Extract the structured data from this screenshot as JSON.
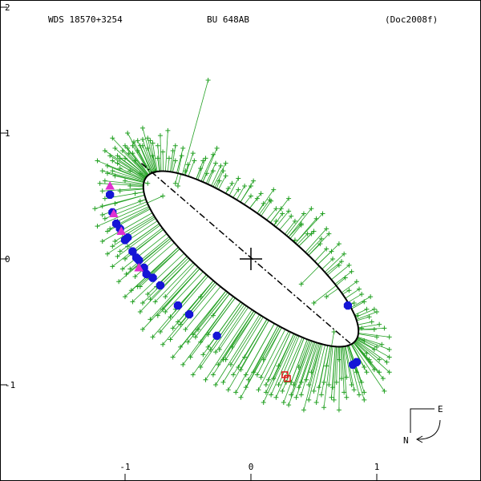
{
  "header": {
    "left": "WDS 18570+3254",
    "center": "BU  648AB",
    "right": "(Doc2008f)"
  },
  "compass": {
    "east": "E",
    "north": "N"
  },
  "colors": {
    "orbit": "#000000",
    "measure": "#22a022",
    "blue": "#1515d6",
    "magenta": "#e030d0",
    "red": "#e01818"
  },
  "chart_data": {
    "type": "scatter",
    "title": "",
    "xlabel": "",
    "ylabel": "",
    "xlim": [
      -2.0,
      1.8
    ],
    "ylim": [
      2.0,
      -1.8
    ],
    "x_ticks": [
      {
        "v": -1,
        "label": "-1"
      },
      {
        "v": 0,
        "label": "0"
      },
      {
        "v": 1,
        "label": "1"
      }
    ],
    "y_ticks": [
      {
        "v": 2,
        "label": "2"
      },
      {
        "v": 1,
        "label": "1"
      },
      {
        "v": 0,
        "label": "0"
      },
      {
        "v": -1,
        "label": "-1"
      }
    ],
    "orbit_ellipse": {
      "cx": 0.0,
      "cy": 0.0,
      "a": 1.055,
      "b": 0.322,
      "angle_deg": 142
    },
    "line_of_nodes": {
      "from": [
        -0.87,
        0.76
      ],
      "to": [
        0.8,
        -0.68
      ]
    },
    "primary": [
      0.0,
      0.0
    ],
    "blue_points": [
      [
        -1.12,
        0.51
      ],
      [
        -1.1,
        0.37
      ],
      [
        -1.07,
        0.28
      ],
      [
        -1.04,
        0.24
      ],
      [
        -1.0,
        0.15
      ],
      [
        -0.98,
        0.17
      ],
      [
        -0.94,
        0.06
      ],
      [
        -0.91,
        0.01
      ],
      [
        -0.89,
        -0.01
      ],
      [
        -0.85,
        -0.07
      ],
      [
        -0.83,
        -0.12
      ],
      [
        -0.78,
        -0.15
      ],
      [
        -0.72,
        -0.21
      ],
      [
        -0.58,
        -0.37
      ],
      [
        -0.49,
        -0.44
      ],
      [
        -0.27,
        -0.61
      ],
      [
        0.77,
        -0.37
      ],
      [
        0.81,
        -0.84
      ],
      [
        0.84,
        -0.82
      ]
    ],
    "magenta_points": [
      [
        -1.12,
        0.58
      ],
      [
        -1.09,
        0.36
      ],
      [
        -1.03,
        0.22
      ],
      [
        -0.89,
        -0.07
      ]
    ],
    "red_points": [
      [
        0.27,
        -0.92
      ],
      [
        0.29,
        -0.95
      ]
    ],
    "green_points": [
      [
        -1.16,
        0.86
      ],
      [
        -1.12,
        0.82
      ],
      [
        -1.08,
        0.88
      ],
      [
        -1.04,
        0.8
      ],
      [
        -1.0,
        0.9
      ],
      [
        -0.97,
        0.84
      ],
      [
        -0.93,
        0.93
      ],
      [
        -0.9,
        0.86
      ],
      [
        -0.86,
        0.95
      ],
      [
        -0.82,
        0.88
      ],
      [
        -0.78,
        0.82
      ],
      [
        -0.74,
        0.9
      ],
      [
        -0.7,
        0.85
      ],
      [
        -0.65,
        0.8
      ],
      [
        -0.6,
        0.78
      ],
      [
        -0.55,
        0.82
      ],
      [
        -0.5,
        0.75
      ],
      [
        -0.45,
        0.78
      ],
      [
        -0.4,
        0.72
      ],
      [
        -0.35,
        0.68
      ],
      [
        -0.3,
        0.7
      ],
      [
        -0.25,
        0.62
      ],
      [
        -0.2,
        0.66
      ],
      [
        -0.15,
        0.6
      ],
      [
        -0.1,
        0.55
      ],
      [
        -0.05,
        0.58
      ],
      [
        0.0,
        0.5
      ],
      [
        0.05,
        0.48
      ],
      [
        0.1,
        0.44
      ],
      [
        0.15,
        0.47
      ],
      [
        0.2,
        0.4
      ],
      [
        0.25,
        0.36
      ],
      [
        0.3,
        0.38
      ],
      [
        0.35,
        0.3
      ],
      [
        0.4,
        0.27
      ],
      [
        0.45,
        0.2
      ],
      [
        0.5,
        0.22
      ],
      [
        0.55,
        0.12
      ],
      [
        0.6,
        0.08
      ],
      [
        0.65,
        0.0
      ],
      [
        0.7,
        -0.05
      ],
      [
        0.75,
        -0.15
      ],
      [
        0.78,
        -0.25
      ],
      [
        0.82,
        -0.35
      ],
      [
        0.85,
        -0.45
      ],
      [
        0.88,
        -0.55
      ],
      [
        0.9,
        -0.65
      ],
      [
        0.92,
        -0.75
      ],
      [
        0.95,
        -0.82
      ],
      [
        0.98,
        -0.88
      ],
      [
        1.02,
        -0.9
      ],
      [
        1.05,
        -0.95
      ],
      [
        0.88,
        -0.98
      ],
      [
        0.8,
        -1.0
      ],
      [
        0.72,
        -0.95
      ],
      [
        0.65,
        -1.02
      ],
      [
        0.58,
        -0.98
      ],
      [
        0.5,
        -1.05
      ],
      [
        0.44,
        -0.96
      ],
      [
        0.38,
        -1.02
      ],
      [
        0.32,
        -0.98
      ],
      [
        0.25,
        -1.05
      ],
      [
        0.18,
        -0.95
      ],
      [
        0.12,
        -1.0
      ],
      [
        0.05,
        -0.92
      ],
      [
        -0.02,
        -0.96
      ],
      [
        -0.08,
        -0.88
      ],
      [
        -0.14,
        -0.92
      ],
      [
        -0.2,
        -0.8
      ],
      [
        -0.26,
        -0.84
      ],
      [
        -0.32,
        -0.72
      ],
      [
        -0.38,
        -0.76
      ],
      [
        -0.44,
        -0.62
      ],
      [
        -0.5,
        -0.66
      ],
      [
        -0.56,
        -0.52
      ],
      [
        -0.62,
        -0.55
      ],
      [
        -0.68,
        -0.42
      ],
      [
        -0.74,
        -0.45
      ],
      [
        -0.8,
        -0.32
      ],
      [
        -0.86,
        -0.35
      ],
      [
        -0.9,
        -0.22
      ],
      [
        -0.95,
        -0.25
      ],
      [
        -0.99,
        -0.12
      ],
      [
        -1.02,
        -0.08
      ],
      [
        -1.06,
        0.02
      ],
      [
        -1.1,
        0.1
      ],
      [
        -1.14,
        0.22
      ],
      [
        -1.18,
        0.35
      ],
      [
        -1.16,
        0.48
      ],
      [
        -1.2,
        0.6
      ],
      [
        -1.18,
        0.7
      ],
      [
        -1.22,
        0.78
      ],
      [
        -1.14,
        0.68
      ],
      [
        -1.08,
        0.66
      ],
      [
        -1.04,
        0.72
      ],
      [
        -0.96,
        0.7
      ],
      [
        -0.92,
        0.78
      ],
      [
        -0.84,
        0.74
      ],
      [
        -0.88,
        0.68
      ],
      [
        -1.1,
        0.96
      ],
      [
        -0.98,
        1.0
      ],
      [
        -0.86,
        1.04
      ],
      [
        -0.72,
        0.98
      ],
      [
        -0.6,
        0.9
      ],
      [
        -0.66,
        1.02
      ],
      [
        -0.36,
        0.8
      ],
      [
        -0.24,
        0.74
      ],
      [
        -0.18,
        0.56
      ],
      [
        0.02,
        0.62
      ],
      [
        0.18,
        0.55
      ],
      [
        0.3,
        0.48
      ],
      [
        0.42,
        0.36
      ],
      [
        0.52,
        0.32
      ],
      [
        0.62,
        0.2
      ],
      [
        0.7,
        0.12
      ],
      [
        0.78,
        -0.05
      ],
      [
        0.84,
        -0.18
      ],
      [
        0.88,
        -0.28
      ],
      [
        0.92,
        -0.4
      ],
      [
        0.96,
        -0.5
      ],
      [
        1.0,
        -0.62
      ],
      [
        0.98,
        -0.72
      ],
      [
        1.02,
        -0.8
      ],
      [
        0.92,
        -0.9
      ],
      [
        0.86,
        -1.08
      ],
      [
        0.76,
        -1.1
      ],
      [
        0.66,
        -1.12
      ],
      [
        0.56,
        -1.08
      ],
      [
        0.46,
        -1.12
      ],
      [
        0.36,
        -1.1
      ],
      [
        0.26,
        -1.14
      ],
      [
        0.16,
        -1.08
      ],
      [
        0.06,
        -1.04
      ],
      [
        -0.04,
        -1.02
      ],
      [
        -0.12,
        -1.06
      ],
      [
        -0.22,
        -0.98
      ],
      [
        -0.3,
        -0.92
      ],
      [
        -0.4,
        -0.86
      ],
      [
        -0.48,
        -0.78
      ],
      [
        -0.56,
        -0.7
      ],
      [
        -0.64,
        -0.64
      ],
      [
        -0.72,
        -0.58
      ],
      [
        -0.8,
        -0.48
      ],
      [
        -0.88,
        -0.42
      ],
      [
        -0.94,
        -0.34
      ],
      [
        -1.0,
        -0.3
      ],
      [
        -1.05,
        -0.18
      ],
      [
        -1.1,
        -0.06
      ],
      [
        -1.14,
        0.04
      ],
      [
        -1.18,
        0.14
      ],
      [
        -1.22,
        0.26
      ],
      [
        -1.24,
        0.4
      ],
      [
        -0.4,
        -0.3
      ],
      [
        -0.3,
        -0.45
      ],
      [
        0.4,
        -0.2
      ],
      [
        0.5,
        -0.35
      ],
      [
        0.35,
        0.15
      ],
      [
        0.2,
        0.3
      ],
      [
        -0.6,
        0.6
      ],
      [
        -0.7,
        0.5
      ],
      [
        -0.82,
        0.6
      ],
      [
        -0.76,
        0.7
      ],
      [
        -0.52,
        0.7
      ],
      [
        -0.58,
        0.58
      ],
      [
        0.6,
        -0.3
      ],
      [
        0.66,
        -0.58
      ],
      [
        0.7,
        -0.8
      ],
      [
        0.6,
        -0.85
      ],
      [
        0.48,
        -0.9
      ],
      [
        0.38,
        -0.86
      ],
      [
        0.22,
        -0.85
      ],
      [
        0.1,
        -0.8
      ],
      [
        -0.05,
        -0.78
      ],
      [
        -0.15,
        -0.7
      ],
      [
        -0.25,
        -0.72
      ],
      [
        -0.34,
        -0.6
      ],
      [
        -0.42,
        -0.56
      ],
      [
        -0.52,
        -0.44
      ],
      [
        -0.6,
        -0.4
      ],
      [
        -0.68,
        -0.3
      ],
      [
        -0.75,
        -0.22
      ],
      [
        -0.82,
        -0.14
      ],
      [
        -0.88,
        -0.06
      ],
      [
        -0.94,
        0.04
      ],
      [
        -0.98,
        0.1
      ],
      [
        -1.02,
        0.2
      ],
      [
        -1.06,
        0.3
      ],
      [
        -1.08,
        0.44
      ],
      [
        -1.04,
        0.54
      ],
      [
        -1.0,
        0.62
      ],
      [
        -0.96,
        0.58
      ],
      [
        -0.92,
        0.52
      ],
      [
        -0.88,
        0.46
      ],
      [
        0.95,
        -0.3
      ],
      [
        1.0,
        -0.42
      ],
      [
        1.06,
        -0.55
      ],
      [
        1.04,
        -0.68
      ],
      [
        1.08,
        -0.82
      ],
      [
        1.1,
        -0.78
      ],
      [
        0.9,
        -1.12
      ],
      [
        0.7,
        -1.2
      ],
      [
        0.58,
        -1.18
      ],
      [
        0.42,
        -1.2
      ],
      [
        0.3,
        -1.16
      ],
      [
        0.1,
        -1.14
      ],
      [
        -0.08,
        -1.1
      ],
      [
        -0.18,
        -1.04
      ],
      [
        -0.28,
        -1.0
      ],
      [
        -0.36,
        -0.96
      ],
      [
        -0.46,
        -0.92
      ],
      [
        -0.54,
        -0.84
      ],
      [
        -0.62,
        -0.78
      ],
      [
        -0.7,
        -0.68
      ],
      [
        -0.78,
        -0.62
      ],
      [
        -0.86,
        -0.56
      ],
      [
        -1.1,
        0.7
      ],
      [
        -1.06,
        0.76
      ],
      [
        -1.0,
        0.8
      ],
      [
        -0.94,
        0.84
      ],
      [
        -0.88,
        0.9
      ],
      [
        -0.8,
        0.94
      ],
      [
        -0.74,
        0.8
      ],
      [
        -0.62,
        0.86
      ],
      [
        -0.54,
        0.88
      ],
      [
        -0.46,
        0.84
      ],
      [
        -0.38,
        0.78
      ],
      [
        -0.28,
        0.76
      ],
      [
        -0.22,
        0.7
      ],
      [
        -0.1,
        0.64
      ],
      [
        0.0,
        0.58
      ],
      [
        0.08,
        0.52
      ],
      [
        0.16,
        0.46
      ],
      [
        0.24,
        0.4
      ],
      [
        0.32,
        0.34
      ],
      [
        0.4,
        0.28
      ],
      [
        0.48,
        0.2
      ],
      [
        0.56,
        0.16
      ],
      [
        0.64,
        0.06
      ],
      [
        0.72,
        -0.02
      ],
      [
        0.8,
        -0.1
      ],
      [
        0.86,
        -0.24
      ],
      [
        0.9,
        -0.34
      ],
      [
        0.94,
        -0.46
      ],
      [
        0.98,
        -0.56
      ],
      [
        1.0,
        -0.7
      ],
      [
        0.94,
        -0.8
      ],
      [
        0.9,
        -0.86
      ],
      [
        0.84,
        -0.9
      ],
      [
        0.76,
        -0.94
      ],
      [
        0.68,
        -0.98
      ],
      [
        0.62,
        -1.0
      ],
      [
        0.54,
        -1.02
      ],
      [
        0.46,
        -1.0
      ],
      [
        0.4,
        -0.98
      ],
      [
        0.34,
        -1.0
      ],
      [
        0.28,
        -0.98
      ],
      [
        0.22,
        -1.0
      ],
      [
        0.14,
        -0.96
      ],
      [
        0.08,
        -0.94
      ],
      [
        0.02,
        -0.9
      ],
      [
        -0.04,
        -0.92
      ],
      [
        -0.1,
        -0.86
      ],
      [
        -0.16,
        -0.84
      ],
      [
        -0.22,
        -0.8
      ],
      [
        -0.28,
        -0.74
      ],
      [
        -0.34,
        -0.7
      ],
      [
        -0.4,
        -0.66
      ],
      [
        -0.46,
        -0.6
      ],
      [
        -0.52,
        -0.56
      ],
      [
        -0.58,
        -0.5
      ],
      [
        -0.64,
        -0.46
      ],
      [
        -0.7,
        -0.4
      ],
      [
        -0.76,
        -0.34
      ],
      [
        -0.82,
        -0.28
      ],
      [
        -0.88,
        -0.22
      ],
      [
        -0.92,
        -0.14
      ],
      [
        -0.96,
        -0.08
      ],
      [
        -1.0,
        0.0
      ],
      [
        -1.04,
        0.06
      ],
      [
        -1.08,
        0.14
      ],
      [
        -1.12,
        0.24
      ],
      [
        -1.16,
        0.32
      ],
      [
        -1.18,
        0.42
      ],
      [
        -1.18,
        0.54
      ],
      [
        -1.16,
        0.62
      ],
      [
        -1.14,
        0.74
      ],
      [
        -1.1,
        0.78
      ],
      [
        -1.06,
        0.82
      ],
      [
        -1.02,
        0.86
      ],
      [
        -0.98,
        0.88
      ],
      [
        -0.94,
        0.9
      ],
      [
        -0.9,
        0.94
      ],
      [
        -0.86,
        0.9
      ],
      [
        -0.82,
        0.96
      ],
      [
        -0.78,
        0.92
      ],
      [
        -0.34,
        1.42
      ],
      [
        -0.27,
        0.88
      ],
      [
        -0.3,
        0.83
      ],
      [
        -0.2,
        0.76
      ],
      [
        0.48,
        0.4
      ],
      [
        0.57,
        0.36
      ],
      [
        0.6,
        0.24
      ],
      [
        0.74,
        0.04
      ],
      [
        0.98,
        -0.4
      ],
      [
        1.02,
        -0.52
      ],
      [
        1.1,
        -0.62
      ],
      [
        1.1,
        -0.72
      ],
      [
        1.1,
        -0.9
      ],
      [
        1.06,
        -1.05
      ],
      [
        0.9,
        -1.06
      ],
      [
        0.82,
        -1.04
      ],
      [
        0.74,
        -1.06
      ],
      [
        0.64,
        -1.1
      ],
      [
        0.52,
        -1.14
      ],
      [
        0.4,
        -1.08
      ],
      [
        0.32,
        -1.08
      ],
      [
        0.2,
        -1.1
      ],
      [
        0.12,
        -1.06
      ]
    ]
  }
}
